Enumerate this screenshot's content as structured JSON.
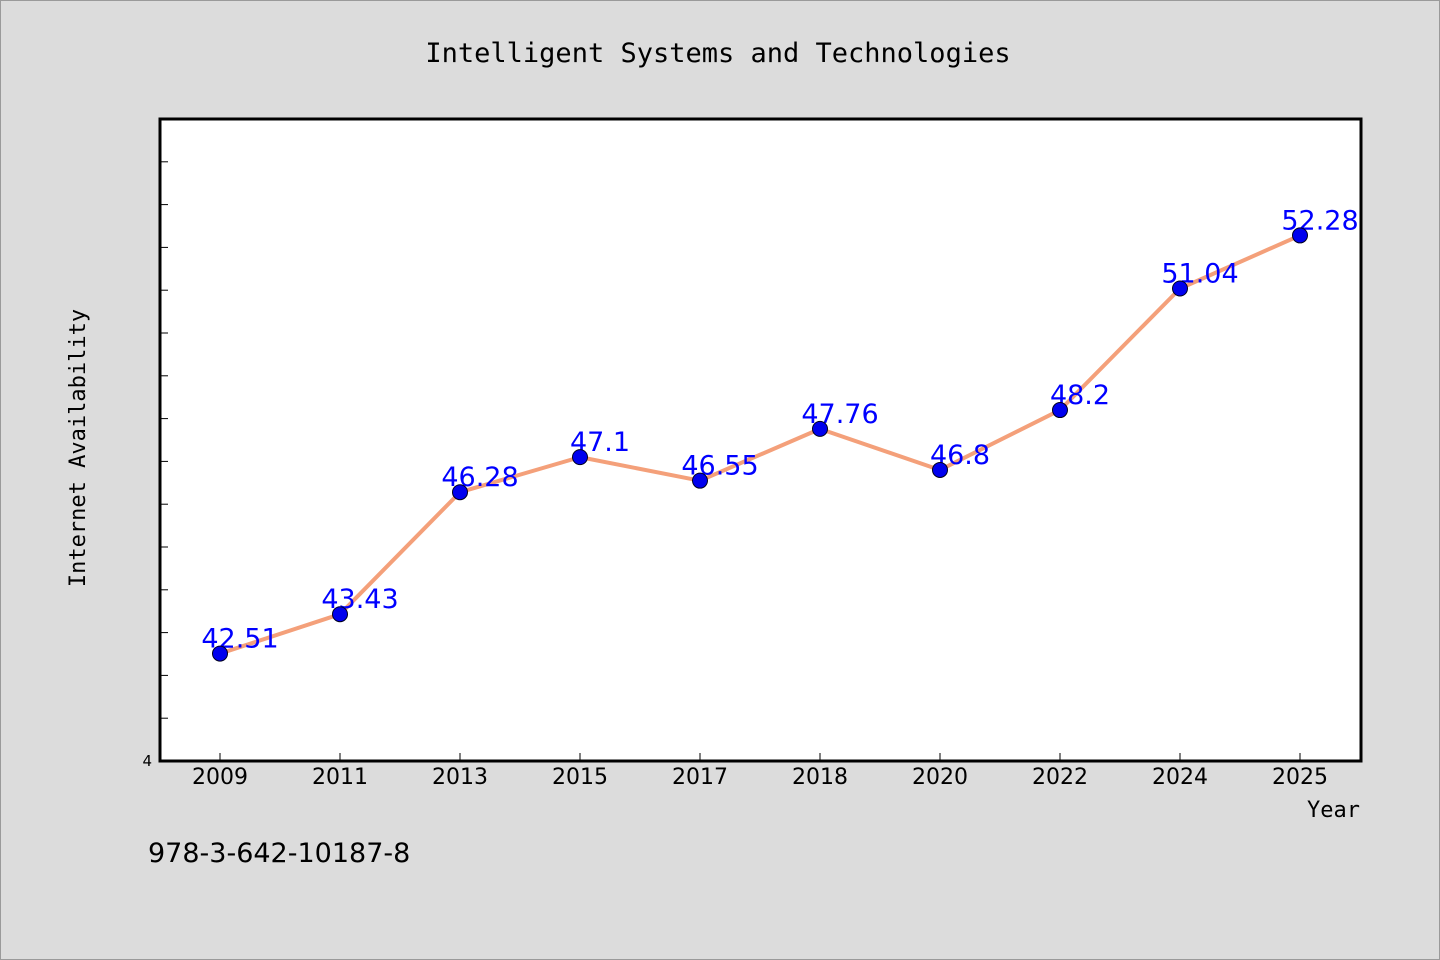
{
  "chart_data": {
    "type": "line",
    "title": "Intelligent Systems and Technologies",
    "xlabel": "Year",
    "ylabel": "Internet Availability",
    "categories": [
      "2009",
      "2011",
      "2013",
      "2015",
      "2017",
      "2018",
      "2020",
      "2022",
      "2024",
      "2025"
    ],
    "series": [
      {
        "values": [
          42.51,
          43.43,
          46.28,
          47.1,
          46.55,
          47.76,
          46.8,
          48.2,
          51.04,
          52.28
        ],
        "data_labels": [
          "42.51",
          "43.43",
          "46.28",
          "47.1",
          "46.55",
          "47.76",
          "46.8",
          "48.2",
          "51.04",
          "52.28"
        ],
        "line_color": "#f4a07a",
        "marker_color": "#0000ee"
      }
    ],
    "ylim": [
      40,
      55
    ],
    "yticks_minor_step": 1,
    "ytick_labels": [
      "4"
    ],
    "grid": false,
    "legend": "none"
  },
  "footnote": "978-3-642-10187-8",
  "colors": {
    "background": "#dcdcdc",
    "plot_background": "#ffffff",
    "data_label": "#0000ff"
  }
}
